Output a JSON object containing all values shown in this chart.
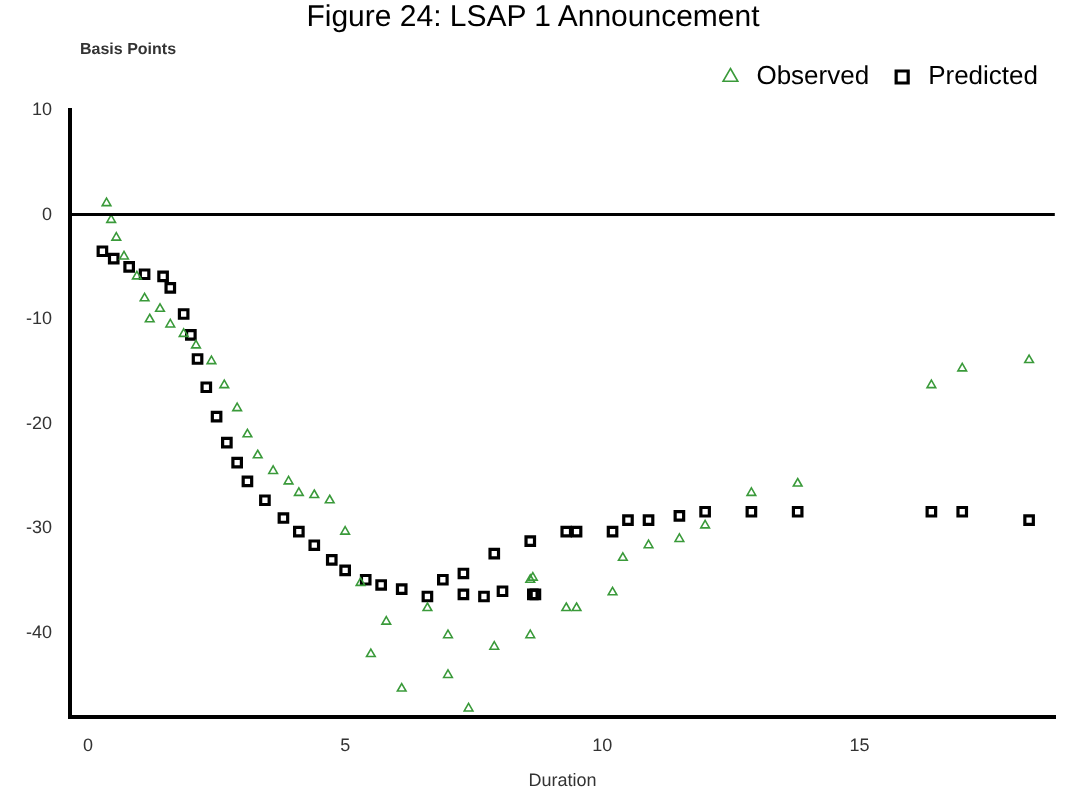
{
  "chart_data": {
    "type": "scatter",
    "title": "Figure 24: LSAP 1 Announcement",
    "xlabel": "Duration",
    "ylabel": "Basis Points",
    "xlim": [
      -0.35,
      18.8
    ],
    "xticks": [
      0,
      5,
      10,
      15
    ],
    "ylim": [
      -48,
      10
    ],
    "yticks": [
      10,
      0,
      -10,
      -20,
      -30,
      -40
    ],
    "grid": false,
    "legend": "top right",
    "ref_lines": [
      {
        "axis": "y",
        "value": 0,
        "color": "#000000"
      }
    ],
    "series": [
      {
        "name": "Observed",
        "color": "#3a9a3a",
        "marker": "triangle",
        "x": [
          0.36,
          0.45,
          0.55,
          0.7,
          0.95,
          1.1,
          1.2,
          1.4,
          1.6,
          1.86,
          2.1,
          2.4,
          2.65,
          2.9,
          3.1,
          3.3,
          3.6,
          3.9,
          4.1,
          4.4,
          4.7,
          5.0,
          5.3,
          5.5,
          5.8,
          6.1,
          6.6,
          7.0,
          7.0,
          7.4,
          7.9,
          8.6,
          8.6,
          8.65,
          9.3,
          9.5,
          10.2,
          10.4,
          10.9,
          11.5,
          12.0,
          12.9,
          13.8,
          16.4,
          17.0,
          18.3
        ],
        "values": [
          1.1,
          -0.5,
          -2.2,
          -4,
          -5.9,
          -8,
          -10,
          -9,
          -10.5,
          -11.4,
          -12.5,
          -14,
          -16.3,
          -18.5,
          -21,
          -23,
          -24.5,
          -25.5,
          -26.6,
          -26.8,
          -27.3,
          -30.3,
          -35.2,
          -42,
          -38.9,
          -45.3,
          -37.6,
          -40.2,
          -44,
          -47.2,
          -41.3,
          -40.2,
          -34.9,
          -34.7,
          -37.6,
          -37.6,
          -36.1,
          -32.8,
          -31.6,
          -31,
          -29.7,
          -26.6,
          -25.7,
          -16.3,
          -14.7,
          -13.9
        ]
      },
      {
        "name": "Predicted",
        "color": "#000000",
        "marker": "square",
        "x": [
          0.28,
          0.5,
          0.8,
          1.1,
          1.46,
          1.6,
          1.86,
          2.0,
          2.13,
          2.3,
          2.5,
          2.7,
          2.9,
          3.1,
          3.44,
          3.8,
          4.1,
          4.4,
          4.74,
          5.0,
          5.4,
          5.7,
          6.1,
          6.6,
          6.9,
          7.3,
          7.3,
          7.7,
          7.9,
          8.06,
          8.6,
          8.65,
          8.7,
          9.3,
          9.5,
          10.2,
          10.5,
          10.9,
          11.5,
          12.0,
          12.9,
          13.8,
          16.4,
          17.0,
          18.3
        ],
        "values": [
          -3.5,
          -4.2,
          -5,
          -5.7,
          -5.9,
          -7,
          -9.5,
          -11.5,
          -13.8,
          -16.5,
          -19.3,
          -21.8,
          -23.7,
          -25.5,
          -27.3,
          -29,
          -30.3,
          -31.6,
          -33,
          -34,
          -34.9,
          -35.4,
          -35.8,
          -36.5,
          -34.9,
          -34.3,
          -36.3,
          -36.5,
          -32.4,
          -36,
          -31.2,
          -36.3,
          -36.3,
          -30.3,
          -30.3,
          -30.3,
          -29.2,
          -29.2,
          -28.8,
          -28.4,
          -28.4,
          -28.4,
          -28.4,
          -28.4,
          -29.2
        ]
      }
    ]
  }
}
